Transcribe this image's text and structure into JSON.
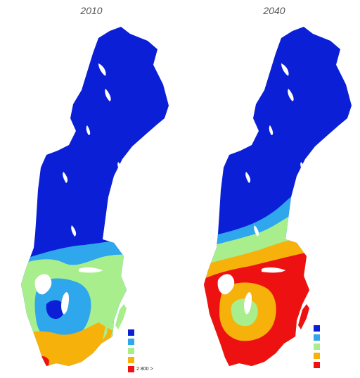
{
  "panels": [
    {
      "title": "2010"
    },
    {
      "title": "2040"
    }
  ],
  "legend": {
    "colors": [
      "#0a1fd6",
      "#2ea7ec",
      "#a8ee8c",
      "#f6b10a",
      "#ee1111"
    ],
    "top_label": "2 800 >"
  },
  "colors": {
    "blue": "#0a1fd6",
    "lightblue": "#2ea7ec",
    "green": "#a8ee8c",
    "yellow": "#f6b10a",
    "red": "#ee1111",
    "water": "#ffffff"
  }
}
